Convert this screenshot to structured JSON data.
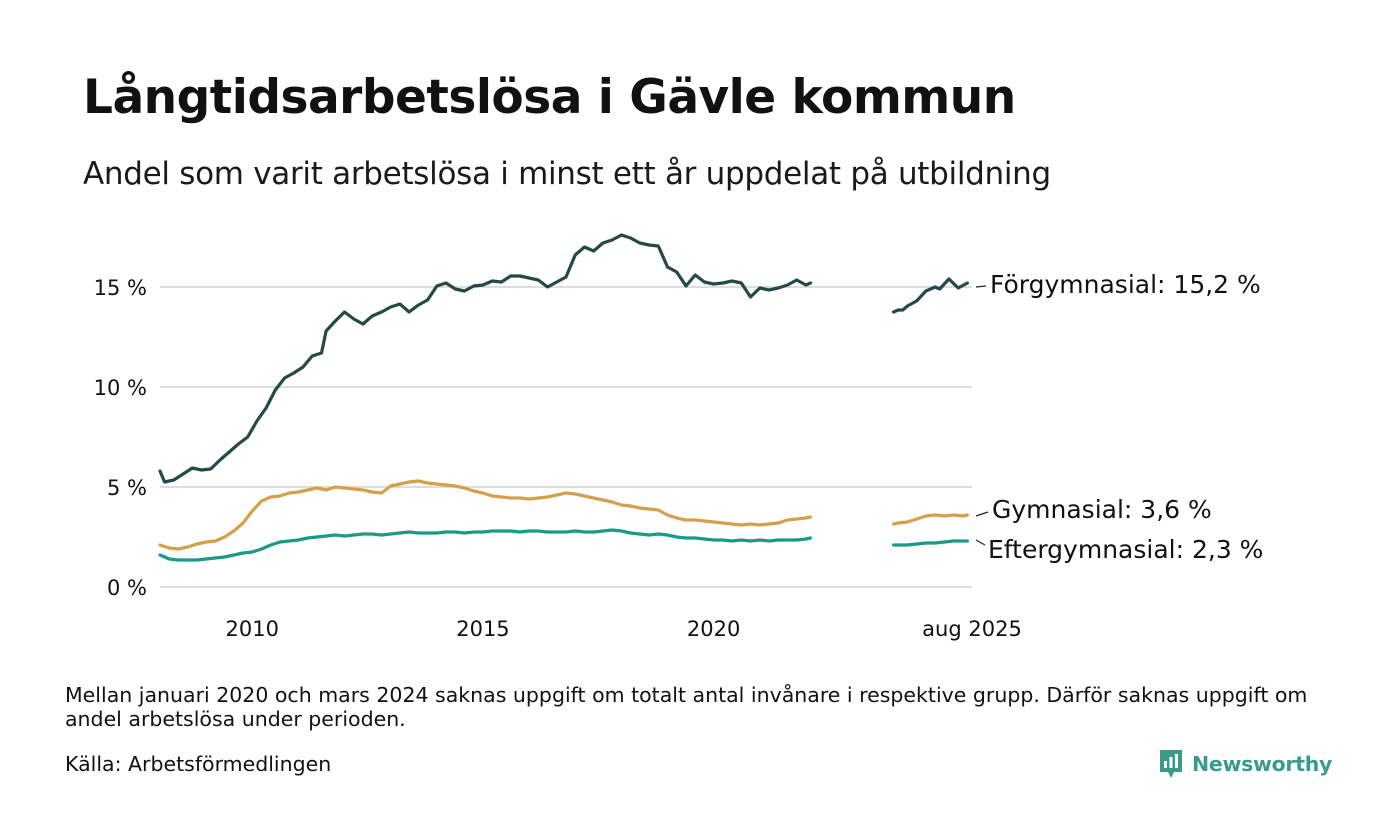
{
  "title": "Långtidsarbetslösa i Gävle kommun",
  "subtitle": "Andel som varit arbetslösa i minst ett år uppdelat på utbildning",
  "note": "Mellan januari 2020 och mars 2024 saknas uppgift om totalt antal invånare i respektive grupp. Därför saknas uppgift om andel arbetslösa under perioden.",
  "source": "Källa: Arbetsförmedlingen",
  "brand": "Newsworthy",
  "colors": {
    "accent": "#3b9b8a",
    "grid": "#dddddd"
  },
  "chart_data": {
    "type": "line",
    "xlabel": "",
    "ylabel": "",
    "xlim": [
      2008.0,
      2025.6
    ],
    "ylim": [
      0,
      18
    ],
    "x_ticks": [
      {
        "value": 2010,
        "label": "2010"
      },
      {
        "value": 2015,
        "label": "2015"
      },
      {
        "value": 2020,
        "label": "2020"
      },
      {
        "value": 2025.6,
        "label": "aug 2025"
      }
    ],
    "y_ticks": [
      {
        "value": 0,
        "label": "0 %"
      },
      {
        "value": 5,
        "label": "5 %"
      },
      {
        "value": 10,
        "label": "10 %"
      },
      {
        "value": 15,
        "label": "15 %"
      }
    ],
    "grid": true,
    "legend": "direct labels at right end of each line",
    "series": [
      {
        "name": "Förgymnasial",
        "label": "Förgymnasial: 15,2 %",
        "color": "#234a44",
        "segments": [
          [
            [
              2008.0,
              5.8
            ],
            [
              2008.1,
              5.25
            ],
            [
              2008.3,
              5.35
            ],
            [
              2008.5,
              5.65
            ],
            [
              2008.7,
              5.95
            ],
            [
              2008.9,
              5.85
            ],
            [
              2009.1,
              5.9
            ],
            [
              2009.3,
              6.35
            ],
            [
              2009.5,
              6.75
            ],
            [
              2009.7,
              7.15
            ],
            [
              2009.9,
              7.5
            ],
            [
              2010.1,
              8.3
            ],
            [
              2010.3,
              8.95
            ],
            [
              2010.5,
              9.85
            ],
            [
              2010.7,
              10.45
            ],
            [
              2010.9,
              10.7
            ],
            [
              2011.1,
              11.0
            ],
            [
              2011.3,
              11.55
            ],
            [
              2011.5,
              11.7
            ],
            [
              2011.6,
              12.8
            ],
            [
              2011.8,
              13.3
            ],
            [
              2012.0,
              13.75
            ],
            [
              2012.2,
              13.4
            ],
            [
              2012.4,
              13.15
            ],
            [
              2012.6,
              13.55
            ],
            [
              2012.8,
              13.75
            ],
            [
              2013.0,
              14.0
            ],
            [
              2013.2,
              14.15
            ],
            [
              2013.4,
              13.75
            ],
            [
              2013.6,
              14.1
            ],
            [
              2013.8,
              14.35
            ],
            [
              2014.0,
              15.05
            ],
            [
              2014.2,
              15.2
            ],
            [
              2014.4,
              14.9
            ],
            [
              2014.6,
              14.8
            ],
            [
              2014.8,
              15.05
            ],
            [
              2015.0,
              15.1
            ],
            [
              2015.2,
              15.3
            ],
            [
              2015.4,
              15.25
            ],
            [
              2015.6,
              15.55
            ],
            [
              2015.8,
              15.55
            ],
            [
              2016.0,
              15.45
            ],
            [
              2016.2,
              15.35
            ],
            [
              2016.4,
              15.0
            ],
            [
              2016.6,
              15.25
            ],
            [
              2016.8,
              15.5
            ],
            [
              2017.0,
              16.6
            ],
            [
              2017.2,
              17.0
            ],
            [
              2017.4,
              16.8
            ],
            [
              2017.6,
              17.2
            ],
            [
              2017.8,
              17.35
            ],
            [
              2018.0,
              17.6
            ],
            [
              2018.2,
              17.45
            ],
            [
              2018.4,
              17.2
            ],
            [
              2018.6,
              17.1
            ],
            [
              2018.8,
              17.05
            ],
            [
              2019.0,
              16.0
            ],
            [
              2019.2,
              15.75
            ],
            [
              2019.4,
              15.05
            ],
            [
              2019.6,
              15.6
            ],
            [
              2019.8,
              15.25
            ],
            [
              2020.0,
              15.15
            ],
            [
              2020.2,
              15.2
            ],
            [
              2020.4,
              15.3
            ],
            [
              2020.6,
              15.2
            ],
            [
              2020.8,
              14.5
            ],
            [
              2021.0,
              14.95
            ],
            [
              2021.2,
              14.85
            ],
            [
              2021.4,
              14.95
            ],
            [
              2021.6,
              15.1
            ],
            [
              2021.8,
              15.35
            ],
            [
              2022.0,
              15.1
            ],
            [
              2022.1,
              15.2
            ]
          ],
          [
            [
              2023.9,
              13.75
            ],
            [
              2024.0,
              13.85
            ],
            [
              2024.1,
              13.85
            ],
            [
              2024.2,
              14.05
            ],
            [
              2024.4,
              14.3
            ],
            [
              2024.6,
              14.8
            ],
            [
              2024.8,
              15.0
            ],
            [
              2024.9,
              14.9
            ],
            [
              2025.1,
              15.4
            ],
            [
              2025.3,
              14.95
            ],
            [
              2025.5,
              15.2
            ]
          ]
        ]
      },
      {
        "name": "Gymnasial",
        "label": "Gymnasial:  3,6 %",
        "color": "#d4a04c",
        "segments": [
          [
            [
              2008.0,
              2.1
            ],
            [
              2008.2,
              1.95
            ],
            [
              2008.4,
              1.9
            ],
            [
              2008.6,
              2.0
            ],
            [
              2008.8,
              2.15
            ],
            [
              2009.0,
              2.25
            ],
            [
              2009.2,
              2.3
            ],
            [
              2009.4,
              2.5
            ],
            [
              2009.6,
              2.8
            ],
            [
              2009.8,
              3.2
            ],
            [
              2010.0,
              3.8
            ],
            [
              2010.2,
              4.3
            ],
            [
              2010.4,
              4.5
            ],
            [
              2010.6,
              4.55
            ],
            [
              2010.8,
              4.7
            ],
            [
              2011.0,
              4.75
            ],
            [
              2011.2,
              4.85
            ],
            [
              2011.4,
              4.95
            ],
            [
              2011.6,
              4.85
            ],
            [
              2011.8,
              5.0
            ],
            [
              2012.0,
              4.95
            ],
            [
              2012.2,
              4.9
            ],
            [
              2012.4,
              4.85
            ],
            [
              2012.6,
              4.75
            ],
            [
              2012.8,
              4.7
            ],
            [
              2013.0,
              5.05
            ],
            [
              2013.2,
              5.15
            ],
            [
              2013.4,
              5.25
            ],
            [
              2013.6,
              5.3
            ],
            [
              2013.8,
              5.2
            ],
            [
              2014.0,
              5.15
            ],
            [
              2014.2,
              5.1
            ],
            [
              2014.4,
              5.05
            ],
            [
              2014.6,
              4.95
            ],
            [
              2014.8,
              4.8
            ],
            [
              2015.0,
              4.7
            ],
            [
              2015.2,
              4.55
            ],
            [
              2015.4,
              4.5
            ],
            [
              2015.6,
              4.45
            ],
            [
              2015.8,
              4.45
            ],
            [
              2016.0,
              4.4
            ],
            [
              2016.2,
              4.45
            ],
            [
              2016.4,
              4.5
            ],
            [
              2016.6,
              4.6
            ],
            [
              2016.8,
              4.7
            ],
            [
              2017.0,
              4.65
            ],
            [
              2017.2,
              4.55
            ],
            [
              2017.4,
              4.45
            ],
            [
              2017.6,
              4.35
            ],
            [
              2017.8,
              4.25
            ],
            [
              2018.0,
              4.1
            ],
            [
              2018.2,
              4.05
            ],
            [
              2018.4,
              3.95
            ],
            [
              2018.6,
              3.9
            ],
            [
              2018.8,
              3.85
            ],
            [
              2019.0,
              3.6
            ],
            [
              2019.2,
              3.45
            ],
            [
              2019.4,
              3.35
            ],
            [
              2019.6,
              3.35
            ],
            [
              2019.8,
              3.3
            ],
            [
              2020.0,
              3.25
            ],
            [
              2020.2,
              3.2
            ],
            [
              2020.4,
              3.15
            ],
            [
              2020.6,
              3.1
            ],
            [
              2020.8,
              3.15
            ],
            [
              2021.0,
              3.1
            ],
            [
              2021.2,
              3.15
            ],
            [
              2021.4,
              3.2
            ],
            [
              2021.6,
              3.35
            ],
            [
              2021.8,
              3.4
            ],
            [
              2022.0,
              3.45
            ],
            [
              2022.1,
              3.5
            ]
          ],
          [
            [
              2023.9,
              3.15
            ],
            [
              2024.0,
              3.2
            ],
            [
              2024.2,
              3.25
            ],
            [
              2024.4,
              3.4
            ],
            [
              2024.6,
              3.55
            ],
            [
              2024.8,
              3.6
            ],
            [
              2025.0,
              3.55
            ],
            [
              2025.2,
              3.6
            ],
            [
              2025.4,
              3.55
            ],
            [
              2025.5,
              3.6
            ]
          ]
        ]
      },
      {
        "name": "Eftergymnasial",
        "label": "Eftergymnasial:  2,3 %",
        "color": "#1a9a88",
        "segments": [
          [
            [
              2008.0,
              1.6
            ],
            [
              2008.2,
              1.4
            ],
            [
              2008.4,
              1.35
            ],
            [
              2008.6,
              1.35
            ],
            [
              2008.8,
              1.35
            ],
            [
              2009.0,
              1.4
            ],
            [
              2009.2,
              1.45
            ],
            [
              2009.4,
              1.5
            ],
            [
              2009.6,
              1.6
            ],
            [
              2009.8,
              1.7
            ],
            [
              2010.0,
              1.75
            ],
            [
              2010.2,
              1.9
            ],
            [
              2010.4,
              2.1
            ],
            [
              2010.6,
              2.25
            ],
            [
              2010.8,
              2.3
            ],
            [
              2011.0,
              2.35
            ],
            [
              2011.2,
              2.45
            ],
            [
              2011.4,
              2.5
            ],
            [
              2011.6,
              2.55
            ],
            [
              2011.8,
              2.6
            ],
            [
              2012.0,
              2.55
            ],
            [
              2012.2,
              2.6
            ],
            [
              2012.4,
              2.65
            ],
            [
              2012.6,
              2.65
            ],
            [
              2012.8,
              2.6
            ],
            [
              2013.0,
              2.65
            ],
            [
              2013.2,
              2.7
            ],
            [
              2013.4,
              2.75
            ],
            [
              2013.6,
              2.7
            ],
            [
              2013.8,
              2.7
            ],
            [
              2014.0,
              2.7
            ],
            [
              2014.2,
              2.75
            ],
            [
              2014.4,
              2.75
            ],
            [
              2014.6,
              2.7
            ],
            [
              2014.8,
              2.75
            ],
            [
              2015.0,
              2.75
            ],
            [
              2015.2,
              2.8
            ],
            [
              2015.4,
              2.8
            ],
            [
              2015.6,
              2.8
            ],
            [
              2015.8,
              2.75
            ],
            [
              2016.0,
              2.8
            ],
            [
              2016.2,
              2.8
            ],
            [
              2016.4,
              2.75
            ],
            [
              2016.6,
              2.75
            ],
            [
              2016.8,
              2.75
            ],
            [
              2017.0,
              2.8
            ],
            [
              2017.2,
              2.75
            ],
            [
              2017.4,
              2.75
            ],
            [
              2017.6,
              2.8
            ],
            [
              2017.8,
              2.85
            ],
            [
              2018.0,
              2.8
            ],
            [
              2018.2,
              2.7
            ],
            [
              2018.4,
              2.65
            ],
            [
              2018.6,
              2.6
            ],
            [
              2018.8,
              2.65
            ],
            [
              2019.0,
              2.6
            ],
            [
              2019.2,
              2.5
            ],
            [
              2019.4,
              2.45
            ],
            [
              2019.6,
              2.45
            ],
            [
              2019.8,
              2.4
            ],
            [
              2020.0,
              2.35
            ],
            [
              2020.2,
              2.35
            ],
            [
              2020.4,
              2.3
            ],
            [
              2020.6,
              2.35
            ],
            [
              2020.8,
              2.3
            ],
            [
              2021.0,
              2.35
            ],
            [
              2021.2,
              2.3
            ],
            [
              2021.4,
              2.35
            ],
            [
              2021.6,
              2.35
            ],
            [
              2021.8,
              2.35
            ],
            [
              2022.0,
              2.4
            ],
            [
              2022.1,
              2.45
            ]
          ],
          [
            [
              2023.9,
              2.1
            ],
            [
              2024.0,
              2.1
            ],
            [
              2024.2,
              2.1
            ],
            [
              2024.4,
              2.15
            ],
            [
              2024.6,
              2.2
            ],
            [
              2024.8,
              2.2
            ],
            [
              2025.0,
              2.25
            ],
            [
              2025.2,
              2.3
            ],
            [
              2025.4,
              2.3
            ],
            [
              2025.5,
              2.3
            ]
          ]
        ]
      }
    ]
  }
}
